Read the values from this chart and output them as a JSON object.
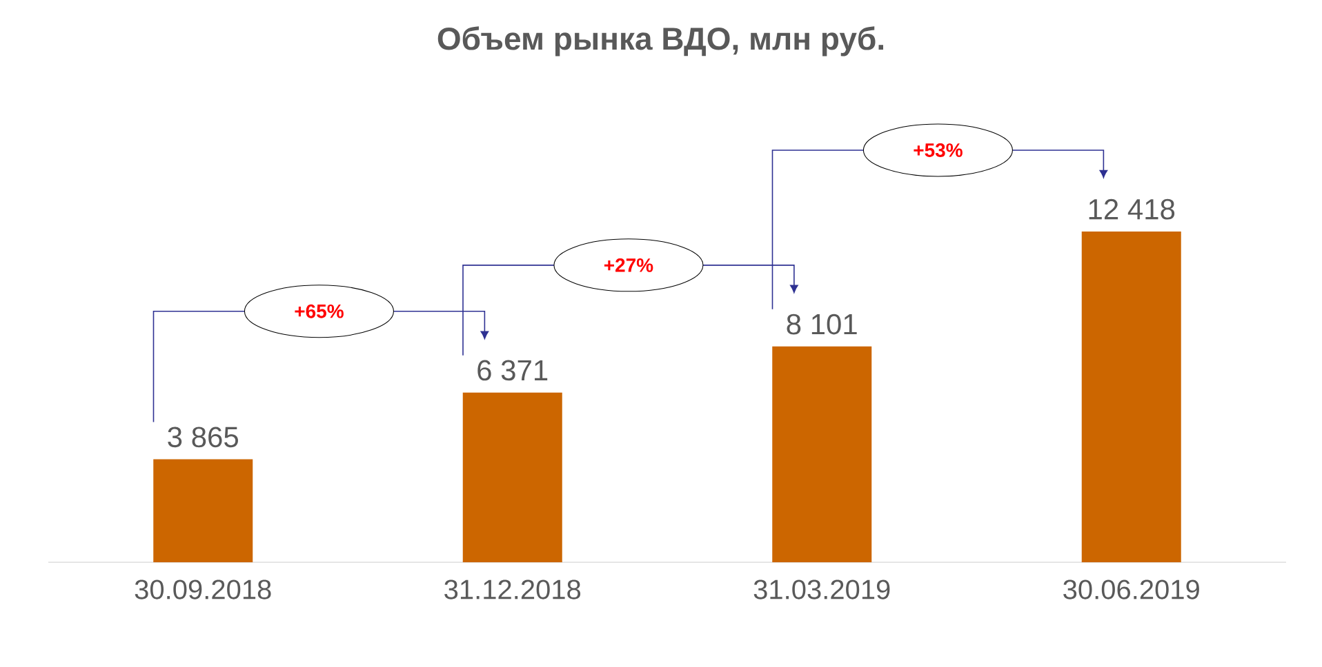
{
  "chart_data": {
    "type": "bar",
    "title": "Объем рынка ВДО, млн руб.",
    "categories": [
      "30.09.2018",
      "31.12.2018",
      "31.03.2019",
      "30.06.2019"
    ],
    "values": [
      3865,
      6371,
      8101,
      12418
    ],
    "value_labels": [
      "3 865",
      "6 371",
      "8 101",
      "12 418"
    ],
    "color": "#cc6600",
    "annotations": [
      "+65%",
      "+27%",
      "+53%"
    ]
  }
}
